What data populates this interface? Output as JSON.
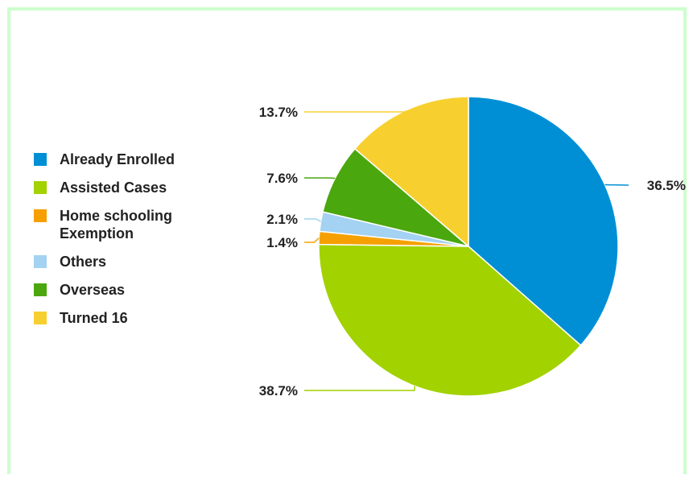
{
  "chart_data": {
    "type": "pie",
    "title": "",
    "legend_position": "left",
    "slices": [
      {
        "label": "Already Enrolled",
        "value": 36.5,
        "display": "36.5%",
        "color": "#008fd5"
      },
      {
        "label": "Assisted Cases",
        "value": 38.7,
        "display": "38.7%",
        "color": "#a2d200"
      },
      {
        "label": "Home schooling Exemption",
        "value": 1.4,
        "display": "1.4%",
        "color": "#f5a000"
      },
      {
        "label": "Others",
        "value": 2.1,
        "display": "2.1%",
        "color": "#a3d2f2"
      },
      {
        "label": "Overseas",
        "value": 7.6,
        "display": "7.6%",
        "color": "#4aa70e"
      },
      {
        "label": "Turned 16",
        "value": 13.7,
        "display": "13.7%",
        "color": "#f7d030"
      }
    ]
  },
  "legend": {
    "items": [
      {
        "label": "Already Enrolled",
        "color": "#008fd5"
      },
      {
        "label": "Assisted Cases",
        "color": "#a2d200"
      },
      {
        "label": "Home schooling Exemption",
        "color": "#f5a000"
      },
      {
        "label": "Others",
        "color": "#a3d2f2"
      },
      {
        "label": "Overseas",
        "color": "#4aa70e"
      },
      {
        "label": "Turned 16",
        "color": "#f7d030"
      }
    ]
  },
  "frame_color": "#ccffcc"
}
